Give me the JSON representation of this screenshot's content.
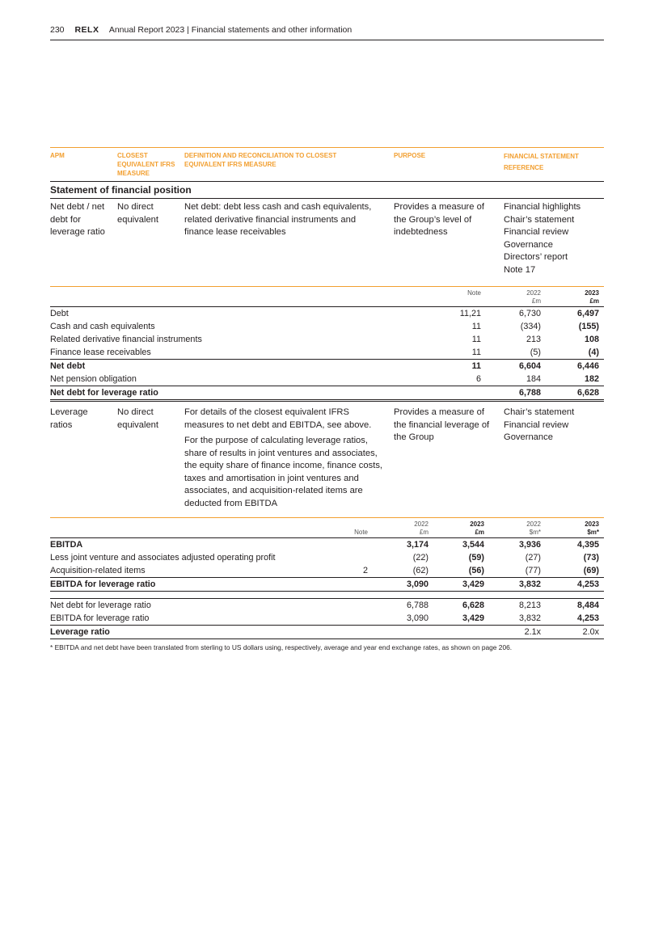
{
  "header": {
    "page_number": "230",
    "brand": "RELX",
    "title": "Annual Report 2023 | Financial statements and other information"
  },
  "columns": {
    "apm": "APM",
    "closest": "CLOSEST EQUIVALENT IFRS MEASURE",
    "definition": "DEFINITION AND RECONCILIATION TO CLOSEST EQUIVALENT IFRS MEASURE",
    "purpose": "PURPOSE",
    "reference": "FINANCIAL STATEMENT REFERENCE"
  },
  "section_title": "Statement of financial position",
  "net_debt_entry": {
    "apm": "Net debt / net debt for leverage ratio",
    "closest": "No direct equivalent",
    "definition": "Net debt: debt less cash and cash equivalents, related derivative financial instruments and finance lease receivables",
    "purpose": "Provides a measure of the Group’s level of indebtedness",
    "references": [
      "Financial highlights",
      "Chair’s statement",
      "Financial review",
      "Governance",
      "Directors’ report",
      "Note 17"
    ]
  },
  "net_debt_table": {
    "headers": {
      "note": "Note",
      "y2022": "2022",
      "y2023": "2023",
      "unit2022": "£m",
      "unit2023": "£m"
    },
    "rows": [
      {
        "label": "Debt",
        "note": "11,21",
        "v2022": "6,730",
        "v2023": "6,497"
      },
      {
        "label": "Cash and cash equivalents",
        "note": "11",
        "v2022": "(334)",
        "v2023": "(155)"
      },
      {
        "label": "Related derivative financial instruments",
        "note": "11",
        "v2022": "213",
        "v2023": "108"
      },
      {
        "label": "Finance lease receivables",
        "note": "11",
        "v2022": "(5)",
        "v2023": "(4)"
      },
      {
        "label": "Net debt",
        "note": "11",
        "v2022": "6,604",
        "v2023": "6,446",
        "bold": true
      },
      {
        "label": "Net pension obligation",
        "note": "6",
        "v2022": "184",
        "v2023": "182"
      },
      {
        "label": "Net debt for leverage ratio",
        "note": "",
        "v2022": "6,788",
        "v2023": "6,628",
        "bold": true
      }
    ]
  },
  "leverage_entry": {
    "apm": "Leverage ratios",
    "closest": "No direct equivalent",
    "definition": [
      "For details of the closest equivalent IFRS measures to net debt and EBITDA, see above.",
      "For the purpose of calculating leverage ratios, share of results in joint ventures and associates, the equity share of finance income, finance costs, taxes and amortisation in joint ventures and associates, and acquisition-related items are deducted from EBITDA"
    ],
    "purpose": "Provides a measure of the financial leverage of the Group",
    "references": [
      "Chair’s statement",
      "Financial review",
      "Governance"
    ]
  },
  "ebitda_table": {
    "headers": {
      "note": "Note",
      "y2022": "2022",
      "y2023": "2023",
      "gbp": "£m",
      "usd": "$m*"
    },
    "rows": [
      {
        "label": "EBITDA",
        "note": "",
        "g2022": "3,174",
        "g2023": "3,544",
        "u2022": "3,936",
        "u2023": "4,395",
        "bold": true
      },
      {
        "label": "Less joint venture and associates adjusted operating profit",
        "note": "",
        "g2022": "(22)",
        "g2023": "(59)",
        "u2022": "(27)",
        "u2023": "(73)"
      },
      {
        "label": "Acquisition-related items",
        "note": "2",
        "g2022": "(62)",
        "g2023": "(56)",
        "u2022": "(77)",
        "u2023": "(69)"
      },
      {
        "label": "EBITDA for leverage ratio",
        "note": "",
        "g2022": "3,090",
        "g2023": "3,429",
        "u2022": "3,832",
        "u2023": "4,253",
        "bold": true
      }
    ],
    "ratio_rows": [
      {
        "label": "Net debt for leverage ratio",
        "g2022": "6,788",
        "g2023": "6,628",
        "u2022": "8,213",
        "u2023": "8,484"
      },
      {
        "label": "EBITDA for leverage ratio",
        "g2022": "3,090",
        "g2023": "3,429",
        "u2022": "3,832",
        "u2023": "4,253"
      },
      {
        "label": "Leverage ratio",
        "g2022": "",
        "g2023": "",
        "u2022": "2.1x",
        "u2023": "2.0x",
        "bold": true
      }
    ]
  },
  "footnote": "* EBITDA and net debt have been translated from sterling to US dollars using, respectively, average and year end exchange rates, as shown on page 206.",
  "colors": {
    "accent": "#f29f30",
    "text": "#231f20"
  }
}
